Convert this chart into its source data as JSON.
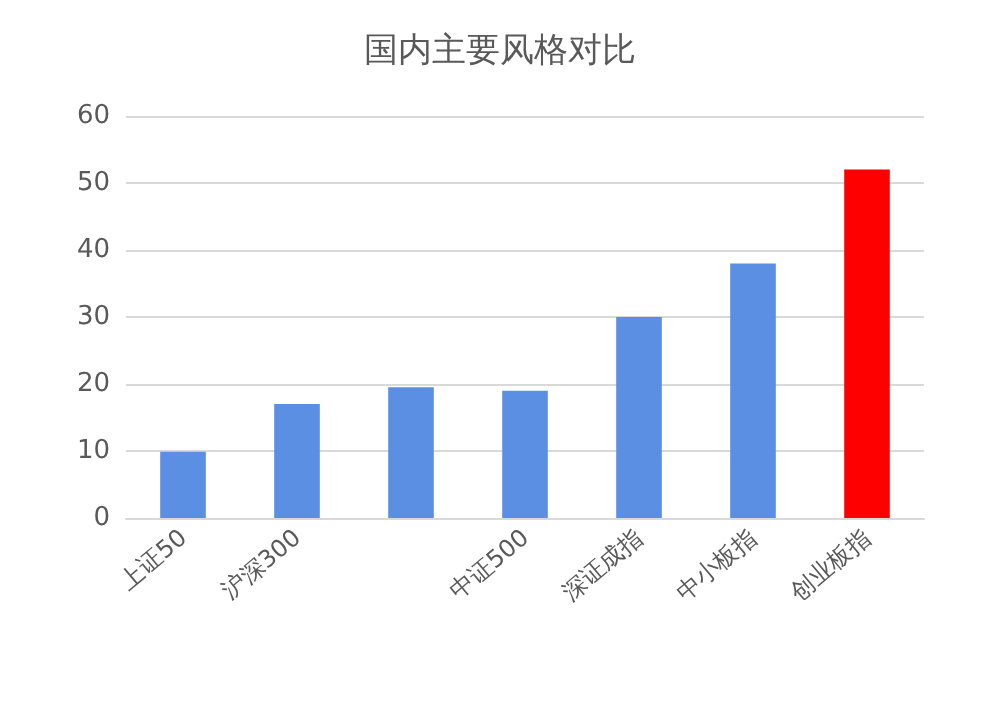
{
  "chart_data": {
    "type": "bar",
    "title": "国内主要风格对比",
    "categories": [
      "上证50",
      "沪深300",
      null,
      "中证500",
      "深证成指",
      "中小板指",
      "创业板指"
    ],
    "values": [
      9.9,
      17,
      19.5,
      19,
      30,
      38,
      52
    ],
    "colors": [
      "#5b8fe3",
      "#5b8fe3",
      "#5b8fe3",
      "#5b8fe3",
      "#5b8fe3",
      "#5b8fe3",
      "#ff0000"
    ],
    "ylim": [
      0,
      60
    ],
    "yticks": [
      0,
      10,
      20,
      30,
      40,
      50,
      60
    ],
    "grid": "y"
  }
}
